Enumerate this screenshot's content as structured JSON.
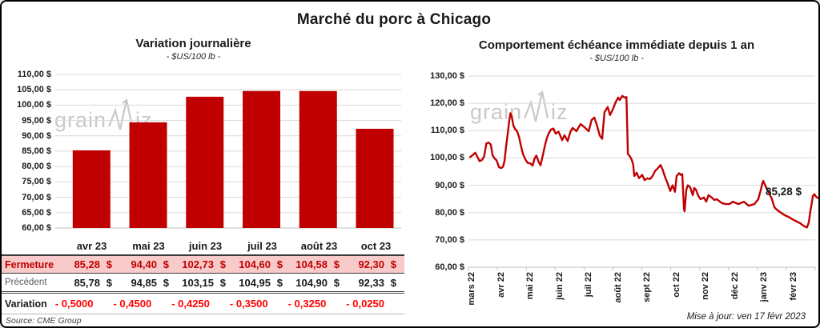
{
  "title": "Marché du porc à Chicago",
  "watermark": {
    "part1": "grain",
    "part2": "iz"
  },
  "source_label": "Source: CME Group",
  "updated_label": "Mise à jour: ven 17 févr 2023",
  "chart_data": [
    {
      "type": "bar",
      "title": "Variation journalière",
      "subtitle": "- $US/100 lb -",
      "categories": [
        "avr 23",
        "mai 23",
        "juin 23",
        "juil 23",
        "août 23",
        "oct 23"
      ],
      "values": [
        85.28,
        94.4,
        102.73,
        104.6,
        104.58,
        92.3
      ],
      "ylim": [
        60,
        110
      ],
      "ytick_labels": [
        "110,00 $",
        "105,00 $",
        "100,00 $",
        "95,00 $",
        "90,00 $",
        "85,00 $",
        "80,00 $",
        "75,00 $",
        "70,00 $",
        "65,00 $",
        "60,00 $"
      ],
      "bar_color": "#C00000",
      "grid_color": "#D9D9D9",
      "axis_color": "#BFBFBF",
      "legend": "none"
    },
    {
      "type": "line",
      "title": "Comportement échéance immédiate depuis 1 an",
      "subtitle": "- $US/100 lb -",
      "x_categories": [
        "mars 22",
        "avr 22",
        "mai 22",
        "juin 22",
        "juil 22",
        "août 22",
        "sept 22",
        "oct 22",
        "nov 22",
        "déc 22",
        "janv 23",
        "févr 23"
      ],
      "ylim": [
        60,
        130
      ],
      "ytick_labels": [
        "130,00 $",
        "120,00 $",
        "110,00 $",
        "100,00 $",
        "90,00 $",
        "80,00 $",
        "70,00 $",
        "60,00 $"
      ],
      "end_label": "85,28 $",
      "last_value": 85.28,
      "grid_color": "#D9D9D9",
      "axis_color": "#BFBFBF",
      "legend": "none",
      "series": [
        {
          "color": "#C00000",
          "points": [
            [
              -0.11,
              100.3
            ],
            [
              0,
              101.2
            ],
            [
              0.07,
              101.9
            ],
            [
              0.14,
              100.4
            ],
            [
              0.22,
              98.8
            ],
            [
              0.3,
              99.3
            ],
            [
              0.37,
              100.5
            ],
            [
              0.45,
              105.3
            ],
            [
              0.53,
              105.6
            ],
            [
              0.6,
              104.9
            ],
            [
              0.66,
              101
            ],
            [
              0.73,
              99.8
            ],
            [
              0.8,
              99.1
            ],
            [
              0.88,
              96.6
            ],
            [
              0.96,
              96.3
            ],
            [
              1.02,
              96.8
            ],
            [
              1.07,
              99
            ],
            [
              1.12,
              104
            ],
            [
              1.18,
              109
            ],
            [
              1.23,
              113.5
            ],
            [
              1.27,
              116.4
            ],
            [
              1.32,
              115
            ],
            [
              1.37,
              112
            ],
            [
              1.43,
              110.6
            ],
            [
              1.5,
              109.7
            ],
            [
              1.57,
              107.5
            ],
            [
              1.63,
              104.5
            ],
            [
              1.7,
              101.5
            ],
            [
              1.78,
              99.5
            ],
            [
              1.86,
              98.2
            ],
            [
              1.95,
              98
            ],
            [
              2.03,
              97.2
            ],
            [
              2.1,
              99.8
            ],
            [
              2.16,
              100.9
            ],
            [
              2.24,
              98.5
            ],
            [
              2.3,
              97.3
            ],
            [
              2.38,
              101
            ],
            [
              2.44,
              104
            ],
            [
              2.51,
              107
            ],
            [
              2.58,
              109
            ],
            [
              2.66,
              110.4
            ],
            [
              2.74,
              110.8
            ],
            [
              2.82,
              108.9
            ],
            [
              2.92,
              109.6
            ],
            [
              3.04,
              106.5
            ],
            [
              3.12,
              108.3
            ],
            [
              3.23,
              106.2
            ],
            [
              3.32,
              109.5
            ],
            [
              3.4,
              111
            ],
            [
              3.53,
              109.8
            ],
            [
              3.67,
              112.4
            ],
            [
              3.81,
              111.2
            ],
            [
              3.95,
              109.8
            ],
            [
              4.05,
              113.9
            ],
            [
              4.14,
              114.8
            ],
            [
              4.22,
              112.4
            ],
            [
              4.33,
              108.2
            ],
            [
              4.41,
              107
            ],
            [
              4.49,
              116.8
            ],
            [
              4.6,
              118.6
            ],
            [
              4.68,
              115.7
            ],
            [
              4.77,
              117.7
            ],
            [
              4.88,
              120.6
            ],
            [
              4.96,
              122.1
            ],
            [
              5.01,
              121.2
            ],
            [
              5.1,
              122.7
            ],
            [
              5.18,
              122.1
            ],
            [
              5.24,
              122.3
            ],
            [
              5.29,
              101.5
            ],
            [
              5.34,
              100.8
            ],
            [
              5.38,
              100.2
            ],
            [
              5.42,
              99.4
            ],
            [
              5.47,
              97.6
            ],
            [
              5.51,
              93.4
            ],
            [
              5.59,
              94.6
            ],
            [
              5.67,
              92.6
            ],
            [
              5.78,
              93.8
            ],
            [
              5.86,
              91.9
            ],
            [
              5.95,
              92.5
            ],
            [
              6.05,
              92.3
            ],
            [
              6.14,
              93.5
            ],
            [
              6.22,
              95.2
            ],
            [
              6.31,
              96.2
            ],
            [
              6.41,
              97.4
            ],
            [
              6.48,
              95.7
            ],
            [
              6.56,
              93.1
            ],
            [
              6.65,
              90.7
            ],
            [
              6.74,
              87.9
            ],
            [
              6.82,
              90
            ],
            [
              6.9,
              87.6
            ],
            [
              6.96,
              93.4
            ],
            [
              7.04,
              94.4
            ],
            [
              7.1,
              93.8
            ],
            [
              7.15,
              94.1
            ],
            [
              7.21,
              81.2
            ],
            [
              7.23,
              80.5
            ],
            [
              7.29,
              88.4
            ],
            [
              7.34,
              90
            ],
            [
              7.42,
              89.3
            ],
            [
              7.51,
              86.4
            ],
            [
              7.56,
              89
            ],
            [
              7.62,
              88.4
            ],
            [
              7.7,
              86.1
            ],
            [
              7.78,
              84.9
            ],
            [
              7.89,
              85.5
            ],
            [
              7.97,
              84
            ],
            [
              8.05,
              86.4
            ],
            [
              8.16,
              85.5
            ],
            [
              8.25,
              84.6
            ],
            [
              8.33,
              84.9
            ],
            [
              8.44,
              84
            ],
            [
              8.52,
              83.4
            ],
            [
              8.63,
              83.1
            ],
            [
              8.77,
              83.1
            ],
            [
              8.88,
              84
            ],
            [
              9.07,
              83.1
            ],
            [
              9.26,
              84
            ],
            [
              9.42,
              82.5
            ],
            [
              9.62,
              83.1
            ],
            [
              9.75,
              84.9
            ],
            [
              9.84,
              88.4
            ],
            [
              9.89,
              90.7
            ],
            [
              9.92,
              91.6
            ],
            [
              10.03,
              89
            ],
            [
              10.11,
              87.5
            ],
            [
              10.22,
              84.9
            ],
            [
              10.3,
              82
            ],
            [
              10.38,
              81.1
            ],
            [
              10.49,
              80.2
            ],
            [
              10.58,
              79.6
            ],
            [
              10.66,
              79
            ],
            [
              10.79,
              78.4
            ],
            [
              10.93,
              77.5
            ],
            [
              11.07,
              76.7
            ],
            [
              11.18,
              76.1
            ],
            [
              11.26,
              75.5
            ],
            [
              11.34,
              74.9
            ],
            [
              11.42,
              74.6
            ],
            [
              11.48,
              76.4
            ],
            [
              11.53,
              80.2
            ],
            [
              11.59,
              84
            ],
            [
              11.62,
              86.1
            ],
            [
              11.67,
              86.7
            ],
            [
              11.73,
              85.8
            ],
            [
              11.8,
              85.3
            ]
          ]
        }
      ]
    }
  ],
  "table": {
    "columns": [
      "avr 23",
      "mai 23",
      "juin 23",
      "juil 23",
      "août 23",
      "oct 23"
    ],
    "rows": [
      {
        "key": "fermeture",
        "label": "Fermeture",
        "unit": "$",
        "values": [
          "85,28",
          "94,40",
          "102,73",
          "104,60",
          "104,58",
          "92,30"
        ]
      },
      {
        "key": "precedent",
        "label": "Précédent",
        "unit": "$",
        "values": [
          "85,78",
          "94,85",
          "103,15",
          "104,95",
          "104,90",
          "92,33"
        ]
      },
      {
        "key": "variation",
        "label": "Variation",
        "unit": "",
        "values": [
          "- 0,5000",
          "- 0,4500",
          "- 0,4250",
          "- 0,3500",
          "- 0,3250",
          "- 0,0250"
        ]
      }
    ]
  }
}
